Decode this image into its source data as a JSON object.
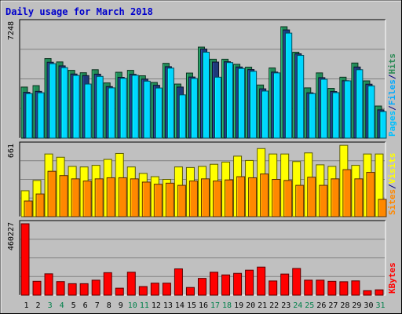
{
  "chart_data": {
    "type": "bar",
    "title": "Daily usage for March 2018",
    "categories": [
      "1",
      "2",
      "3",
      "4",
      "5",
      "6",
      "7",
      "8",
      "9",
      "10",
      "11",
      "12",
      "13",
      "14",
      "15",
      "16",
      "17",
      "18",
      "19",
      "20",
      "21",
      "22",
      "23",
      "24",
      "25",
      "26",
      "27",
      "28",
      "29",
      "30",
      "31"
    ],
    "weekend_days": [
      3,
      4,
      10,
      11,
      17,
      18,
      24,
      25,
      31
    ],
    "panels": [
      {
        "id": "pages-files-hits",
        "max_label": "7248",
        "ylim": [
          0,
          7248
        ],
        "legend": [
          {
            "text": "Pages",
            "color": "#00c0ff"
          },
          {
            "text": "/",
            "color": "#000080"
          },
          {
            "text": "Files",
            "color": "#00aaff"
          },
          {
            "text": "/",
            "color": "#000080"
          },
          {
            "text": "Hits",
            "color": "#2e8b57"
          }
        ],
        "series": [
          {
            "name": "Hits",
            "color": "#228b58",
            "values": [
              3210,
              3300,
              5000,
              4790,
              4260,
              4110,
              4300,
              3470,
              4140,
              4260,
              3920,
              3500,
              4700,
              3400,
              4090,
              5720,
              4960,
              4960,
              4640,
              4460,
              3340,
              4410,
              7000,
              5400,
              3160,
              4100,
              3130,
              3830,
              4720,
              3600,
              2020
            ]
          },
          {
            "name": "Files",
            "color": "#1e3a7a",
            "values": [
              2880,
              2940,
              4770,
              4540,
              4030,
              3930,
              4020,
              3240,
              3820,
              4010,
              3710,
              3320,
              4490,
              3210,
              3840,
              5600,
              4780,
              4800,
              4470,
              4310,
              3100,
              4150,
              6800,
              5300,
              2850,
              3800,
              2930,
              3610,
              4470,
              3390,
              1780
            ]
          },
          {
            "name": "Pages",
            "color": "#00d7ff",
            "values": [
              2800,
              2850,
              4680,
              4430,
              3940,
              3400,
              3880,
              3160,
              3760,
              3950,
              3580,
              3150,
              4400,
              2720,
              3750,
              5400,
              3830,
              4750,
              4380,
              4200,
              2960,
              4100,
              6600,
              5200,
              2800,
              3700,
              2860,
              3600,
              4300,
              3280,
              1670
            ]
          }
        ]
      },
      {
        "id": "visits-sites",
        "max_label": "661",
        "ylim": [
          0,
          661
        ],
        "legend": [
          {
            "text": "Sites",
            "color": "#ff8800"
          },
          {
            "text": "/",
            "color": "#000080"
          },
          {
            "text": "Visits",
            "color": "#ffff00"
          }
        ],
        "series": [
          {
            "name": "Visits",
            "color": "#ffff00",
            "values": [
              240,
              335,
              580,
              550,
              465,
              460,
              475,
              530,
              585,
              460,
              400,
              370,
              345,
              460,
              455,
              465,
              485,
              505,
              560,
              520,
              630,
              580,
              580,
              510,
              590,
              480,
              465,
              660,
              475,
              580,
              580
            ]
          },
          {
            "name": "Sites",
            "color": "#ff8800",
            "values": [
              145,
              210,
              420,
              380,
              350,
              330,
              350,
              360,
              360,
              350,
              320,
              300,
              310,
              290,
              330,
              350,
              330,
              340,
              370,
              360,
              395,
              345,
              335,
              290,
              365,
              290,
              350,
              435,
              350,
              410,
              160
            ]
          }
        ]
      },
      {
        "id": "kbytes",
        "max_label": "460227",
        "ylim": [
          0,
          460227
        ],
        "legend": [
          {
            "text": "KBytes",
            "color": "#ff0000"
          }
        ],
        "series": [
          {
            "name": "KBytes",
            "color": "#ff0000",
            "values": [
              460227,
              89500,
              137500,
              87500,
              74000,
              74000,
              96500,
              145000,
              45000,
              148000,
              55500,
              77500,
              77500,
              169500,
              49500,
              108000,
              148000,
              130500,
              140500,
              161000,
              181000,
              91500,
              136000,
              172000,
              96600,
              96600,
              89400,
              86600,
              92100,
              28900,
              34400
            ]
          }
        ]
      }
    ]
  }
}
